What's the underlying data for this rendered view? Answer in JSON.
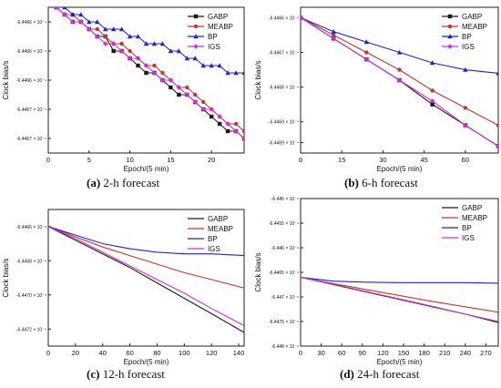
{
  "panels": [
    {
      "id": "a",
      "caption_letter": "(a)",
      "caption_text": "2-h forecast",
      "chart_data": {
        "type": "line",
        "xlabel": "Epoch/(5 min)",
        "ylabel": "Clock bias/s",
        "xlim": [
          0,
          24
        ],
        "ylim": [
          -6.44675,
          -6.44655
        ],
        "xticks": [
          0,
          5,
          10,
          15,
          20
        ],
        "yticks": [
          -6.44657,
          -6.44661,
          -6.44665,
          -6.44669,
          -6.44673
        ],
        "ytick_labels": [
          "-6.4466 × 10⁻⁴",
          "-6.4466 × 10⁻⁴",
          "-6.4466 × 10⁻⁴",
          "-6.4467 × 10⁻⁴",
          "-6.4467 × 10⁻⁴"
        ],
        "legend": "top-right",
        "series": [
          {
            "name": "GABP",
            "color": "#1a1a1a",
            "marker": "square",
            "x": [
              1,
              2,
              3,
              4,
              5,
              6,
              7,
              8,
              9,
              10,
              11,
              12,
              13,
              14,
              15,
              16,
              17,
              18,
              19,
              20,
              21,
              22,
              23,
              24
            ],
            "y": [
              -6.44655,
              -6.44656,
              -6.44657,
              -6.44657,
              -6.44658,
              -6.44659,
              -6.44659,
              -6.44661,
              -6.44661,
              -6.44662,
              -6.44663,
              -6.44664,
              -6.44664,
              -6.44665,
              -6.44666,
              -6.44667,
              -6.44667,
              -6.44668,
              -6.44669,
              -6.4467,
              -6.44671,
              -6.44672,
              -6.44672,
              -6.44673
            ]
          },
          {
            "name": "MEABP",
            "color": "#c0392b",
            "marker": "circle",
            "x": [
              1,
              2,
              3,
              4,
              5,
              6,
              7,
              8,
              9,
              10,
              11,
              12,
              13,
              14,
              15,
              16,
              17,
              18,
              19,
              20,
              21,
              22,
              23,
              24
            ],
            "y": [
              -6.44655,
              -6.44656,
              -6.44656,
              -6.44657,
              -6.44658,
              -6.44658,
              -6.44659,
              -6.4466,
              -6.4466,
              -6.44661,
              -6.44662,
              -6.44663,
              -6.44663,
              -6.44664,
              -6.44665,
              -6.44666,
              -6.44666,
              -6.44667,
              -6.44668,
              -6.44669,
              -6.4467,
              -6.44671,
              -6.44671,
              -6.44672
            ]
          },
          {
            "name": "BP",
            "color": "#2222cc",
            "marker": "triangle",
            "x": [
              1,
              2,
              3,
              4,
              5,
              6,
              7,
              8,
              9,
              10,
              11,
              12,
              13,
              14,
              15,
              16,
              17,
              18,
              19,
              20,
              21,
              22,
              23,
              24
            ],
            "y": [
              -6.44655,
              -6.44655,
              -6.44656,
              -6.44656,
              -6.44657,
              -6.44657,
              -6.44658,
              -6.44658,
              -6.44658,
              -6.44659,
              -6.44659,
              -6.4466,
              -6.4466,
              -6.4466,
              -6.44661,
              -6.44661,
              -6.44662,
              -6.44662,
              -6.44663,
              -6.44663,
              -6.44663,
              -6.44664,
              -6.44664,
              -6.44664
            ]
          },
          {
            "name": "IGS",
            "color": "#cc33cc",
            "marker": "diamond",
            "x": [
              1,
              2,
              3,
              4,
              5,
              6,
              7,
              8,
              9,
              10,
              11,
              12,
              13,
              14,
              15,
              16,
              17,
              18,
              19,
              20,
              21,
              22,
              23,
              24
            ],
            "y": [
              -6.44655,
              -6.44656,
              -6.44657,
              -6.44657,
              -6.44658,
              -6.44659,
              -6.4466,
              -6.4466,
              -6.44661,
              -6.44662,
              -6.44662,
              -6.44663,
              -6.44664,
              -6.44665,
              -6.44665,
              -6.44666,
              -6.44667,
              -6.44668,
              -6.44669,
              -6.44669,
              -6.4467,
              -6.44671,
              -6.44672,
              -6.44673
            ]
          }
        ]
      }
    },
    {
      "id": "b",
      "caption_letter": "(b)",
      "caption_text": "6-h forecast",
      "chart_data": {
        "type": "line",
        "xlabel": "Epoch/(5 min)",
        "ylabel": "Clock bias/s",
        "xlim": [
          0,
          72
        ],
        "ylim": [
          -6.44697,
          -6.44655
        ],
        "xticks": [
          0,
          15,
          30,
          45,
          60
        ],
        "yticks": [
          -6.44658,
          -6.44668,
          -6.44678,
          -6.44688,
          -6.44694
        ],
        "ytick_labels": [
          "-6.4466 × 10⁻⁴",
          "-6.4467 × 10⁻⁴",
          "-6.4468 × 10⁻⁴",
          "-6.4469 × 10⁻⁴",
          "-6.4469 × 10⁻⁴"
        ],
        "legend": "top-right",
        "series": [
          {
            "name": "GABP",
            "color": "#1a1a1a",
            "marker": "square",
            "x": [
              0,
              12,
              24,
              36,
              48,
              60,
              72
            ],
            "y": [
              -6.44658,
              -6.44664,
              -6.4467,
              -6.44676,
              -6.44683,
              -6.44689,
              -6.44695
            ]
          },
          {
            "name": "MEABP",
            "color": "#c0392b",
            "marker": "circle",
            "x": [
              0,
              12,
              24,
              36,
              48,
              60,
              72
            ],
            "y": [
              -6.44658,
              -6.44663,
              -6.44668,
              -6.44673,
              -6.44679,
              -6.44684,
              -6.44689
            ]
          },
          {
            "name": "BP",
            "color": "#2222cc",
            "marker": "triangle",
            "x": [
              0,
              12,
              24,
              36,
              48,
              60,
              72
            ],
            "y": [
              -6.44658,
              -6.44662,
              -6.44665,
              -6.44668,
              -6.44671,
              -6.44673,
              -6.44674
            ]
          },
          {
            "name": "IGS",
            "color": "#cc33cc",
            "marker": "diamond",
            "x": [
              0,
              12,
              24,
              36,
              48,
              60,
              72
            ],
            "y": [
              -6.44658,
              -6.44664,
              -6.4467,
              -6.44676,
              -6.44682,
              -6.44689,
              -6.44695
            ]
          }
        ]
      }
    },
    {
      "id": "c",
      "caption_letter": "(c)",
      "caption_text": "12-h forecast",
      "chart_data": {
        "type": "line",
        "xlabel": "Epoch/(5 min)",
        "ylabel": "Clock bias/s",
        "xlim": [
          0,
          144
        ],
        "ylim": [
          -6.4473,
          -6.4465
        ],
        "xticks": [
          0,
          20,
          40,
          60,
          80,
          100,
          120,
          140
        ],
        "yticks": [
          -6.4466,
          -6.4468,
          -6.447,
          -6.4472
        ],
        "ytick_labels": [
          "-6.4466 × 10⁻⁴",
          "-6.4468 × 10⁻⁴",
          "-6.4470 × 10⁻⁴",
          "-6.4472 × 10⁻⁴"
        ],
        "legend": "top-right",
        "series": [
          {
            "name": "GABP",
            "color": "#1a1a1a",
            "marker": "none",
            "x": [
              0,
              20,
              40,
              60,
              80,
              100,
              120,
              144
            ],
            "y": [
              -6.4466,
              -6.44668,
              -6.44676,
              -6.44684,
              -6.44693,
              -6.44702,
              -6.44711,
              -6.44722
            ]
          },
          {
            "name": "MEABP",
            "color": "#c0392b",
            "marker": "none",
            "x": [
              0,
              20,
              40,
              60,
              80,
              100,
              120,
              144
            ],
            "y": [
              -6.4466,
              -6.44666,
              -6.44672,
              -6.44677,
              -6.44682,
              -6.44687,
              -6.44691,
              -6.44696
            ]
          },
          {
            "name": "BP",
            "color": "#2222cc",
            "marker": "none",
            "x": [
              0,
              20,
              40,
              60,
              80,
              100,
              120,
              144
            ],
            "y": [
              -6.4466,
              -6.44665,
              -6.4467,
              -6.44673,
              -6.44675,
              -6.44676,
              -6.44676,
              -6.44677
            ]
          },
          {
            "name": "IGS",
            "color": "#cc33cc",
            "marker": "none",
            "x": [
              0,
              20,
              40,
              60,
              80,
              100,
              120,
              144
            ],
            "y": [
              -6.4466,
              -6.44667,
              -6.44675,
              -6.44683,
              -6.44691,
              -6.44699,
              -6.44708,
              -6.44718
            ]
          }
        ]
      }
    },
    {
      "id": "d",
      "caption_letter": "(d)",
      "caption_text": "24-h forecast",
      "chart_data": {
        "type": "line",
        "xlabel": "Epoch/(5 min)",
        "ylabel": "Clock bias/s",
        "xlim": [
          0,
          288
        ],
        "ylim": [
          -6.448,
          -6.445
        ],
        "xticks": [
          0,
          30,
          60,
          90,
          120,
          150,
          180,
          210,
          240,
          270
        ],
        "yticks": [
          -6.445,
          -6.4455,
          -6.446,
          -6.4465,
          -6.447,
          -6.4475,
          -6.448
        ],
        "ytick_labels": [
          "-6.445 × 10⁻⁴",
          "-6.4455 × 10⁻⁴",
          "-6.446 × 10⁻⁴",
          "-6.4465 × 10⁻⁴",
          "-6.447 × 10⁻⁴",
          "-6.4475 × 10⁻⁴",
          "-6.448 × 10⁻⁴"
        ],
        "legend": "top-right",
        "series": [
          {
            "name": "GABP",
            "color": "#1a1a1a",
            "marker": "none",
            "x": [
              0,
              48,
              96,
              144,
              192,
              240,
              288
            ],
            "y": [
              -6.4466,
              -6.44675,
              -6.4469,
              -6.44705,
              -6.4472,
              -6.44735,
              -6.44752
            ]
          },
          {
            "name": "MEABP",
            "color": "#c0392b",
            "marker": "none",
            "x": [
              0,
              48,
              96,
              144,
              192,
              240,
              288
            ],
            "y": [
              -6.4466,
              -6.44673,
              -6.44685,
              -6.44697,
              -6.44709,
              -6.4472,
              -6.44731
            ]
          },
          {
            "name": "BP",
            "color": "#2222cc",
            "marker": "none",
            "x": [
              0,
              48,
              96,
              144,
              192,
              240,
              288
            ],
            "y": [
              -6.4466,
              -6.44668,
              -6.4467,
              -6.44671,
              -6.44671,
              -6.44671,
              -6.44672
            ]
          },
          {
            "name": "IGS",
            "color": "#cc33cc",
            "marker": "none",
            "x": [
              0,
              48,
              96,
              144,
              192,
              240,
              288
            ],
            "y": [
              -6.4466,
              -6.44674,
              -6.44689,
              -6.44704,
              -6.44719,
              -6.44735,
              -6.4475
            ]
          }
        ]
      }
    }
  ]
}
